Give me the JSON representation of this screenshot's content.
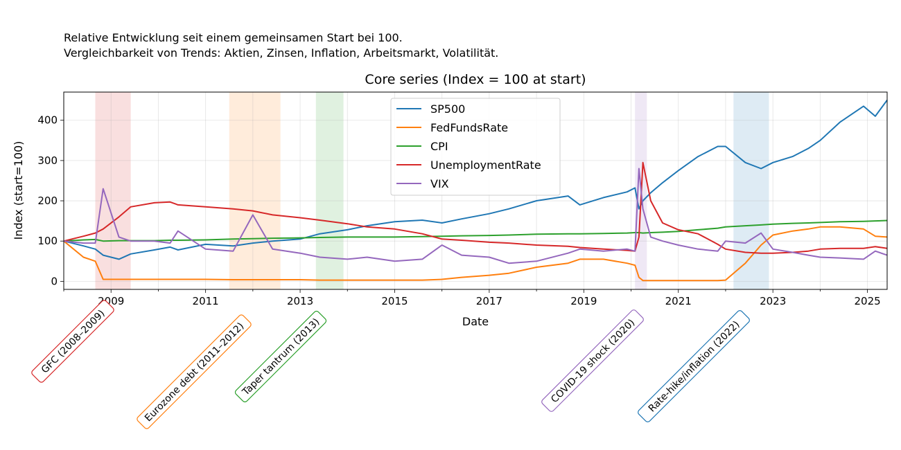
{
  "header": {
    "line1": "Relative Entwicklung seit einem gemeinsamen Start bei 100.",
    "line2": "Vergleichbarkeit von Trends: Aktien, Zinsen, Inflation, Arbeitsmarkt, Volatilität."
  },
  "chart_data": {
    "type": "line",
    "title": "Core series (Index = 100 at start)",
    "xlabel": "Date",
    "ylabel": "Index (start=100)",
    "xlim": [
      "2008-01",
      "2025-06"
    ],
    "ylim": [
      -20,
      470
    ],
    "x_ticks": [
      "2009",
      "2011",
      "2013",
      "2015",
      "2017",
      "2019",
      "2021",
      "2023",
      "2025"
    ],
    "y_ticks": [
      0,
      100,
      200,
      300,
      400
    ],
    "grid": true,
    "legend_position": "top-center",
    "x": [
      "2008-01",
      "2008-06",
      "2008-09",
      "2008-11",
      "2009-03",
      "2009-06",
      "2009-12",
      "2010-04",
      "2010-06",
      "2011-01",
      "2011-08",
      "2012-01",
      "2012-06",
      "2013-01",
      "2013-06",
      "2014-01",
      "2014-06",
      "2015-01",
      "2015-08",
      "2016-01",
      "2016-06",
      "2017-01",
      "2017-06",
      "2018-01",
      "2018-09",
      "2018-12",
      "2019-06",
      "2019-12",
      "2020-02",
      "2020-03",
      "2020-04",
      "2020-06",
      "2020-09",
      "2021-01",
      "2021-06",
      "2021-11",
      "2022-01",
      "2022-06",
      "2022-10",
      "2023-01",
      "2023-06",
      "2023-10",
      "2024-01",
      "2024-06",
      "2024-12",
      "2025-03",
      "2025-06"
    ],
    "series": [
      {
        "name": "SP500",
        "color": "#1f77b4",
        "values": [
          100,
          88,
          80,
          65,
          55,
          68,
          78,
          85,
          78,
          92,
          88,
          95,
          100,
          105,
          118,
          128,
          138,
          148,
          152,
          145,
          155,
          168,
          180,
          200,
          212,
          190,
          208,
          222,
          232,
          180,
          200,
          220,
          245,
          275,
          310,
          335,
          335,
          295,
          280,
          295,
          310,
          330,
          350,
          395,
          435,
          410,
          450
        ]
      },
      {
        "name": "FedFundsRate",
        "color": "#ff7f0e",
        "values": [
          100,
          60,
          50,
          5,
          5,
          5,
          5,
          5,
          5,
          5,
          4,
          4,
          4,
          4,
          3,
          3,
          3,
          3,
          3,
          5,
          10,
          15,
          20,
          35,
          45,
          55,
          55,
          45,
          40,
          10,
          2,
          2,
          2,
          2,
          2,
          2,
          3,
          45,
          90,
          115,
          125,
          130,
          135,
          135,
          130,
          112,
          110
        ]
      },
      {
        "name": "CPI",
        "color": "#2ca02c",
        "values": [
          100,
          103,
          104,
          100,
          101,
          101,
          101,
          102,
          102,
          103,
          105,
          106,
          107,
          108,
          109,
          110,
          110,
          110,
          111,
          112,
          113,
          114,
          115,
          117,
          118,
          118,
          119,
          120,
          121,
          121,
          120,
          121,
          122,
          124,
          128,
          132,
          135,
          138,
          140,
          142,
          144,
          145,
          146,
          148,
          149,
          150,
          151
        ]
      },
      {
        "name": "UnemploymentRate",
        "color": "#d62728",
        "values": [
          100,
          112,
          120,
          130,
          160,
          185,
          195,
          197,
          190,
          185,
          180,
          175,
          165,
          158,
          152,
          143,
          135,
          130,
          118,
          105,
          102,
          97,
          95,
          90,
          87,
          84,
          80,
          77,
          75,
          110,
          295,
          200,
          145,
          128,
          118,
          92,
          80,
          72,
          70,
          70,
          72,
          75,
          80,
          82,
          82,
          86,
          82
        ]
      },
      {
        "name": "VIX",
        "color": "#9467bd",
        "values": [
          100,
          95,
          95,
          230,
          110,
          100,
          100,
          95,
          125,
          80,
          75,
          165,
          80,
          70,
          60,
          55,
          60,
          50,
          55,
          90,
          65,
          60,
          45,
          50,
          70,
          80,
          75,
          80,
          75,
          280,
          180,
          110,
          100,
          90,
          80,
          75,
          100,
          95,
          120,
          80,
          72,
          65,
          60,
          58,
          55,
          75,
          65
        ]
      }
    ]
  },
  "periods": [
    {
      "label": "GFC (2008–2009)",
      "start": "2008-09",
      "end": "2009-06",
      "color": "#d62728"
    },
    {
      "label": "Eurozone debt (2011–2012)",
      "start": "2011-07",
      "end": "2012-08",
      "color": "#ff7f0e"
    },
    {
      "label": "Taper tantrum (2013)",
      "start": "2013-05",
      "end": "2013-12",
      "color": "#2ca02c"
    },
    {
      "label": "COVID-19 shock (2020)",
      "start": "2020-02",
      "end": "2020-05",
      "color": "#9467bd"
    },
    {
      "label": "Rate-hike/inflation (2022)",
      "start": "2022-03",
      "end": "2022-12",
      "color": "#1f77b4"
    }
  ]
}
